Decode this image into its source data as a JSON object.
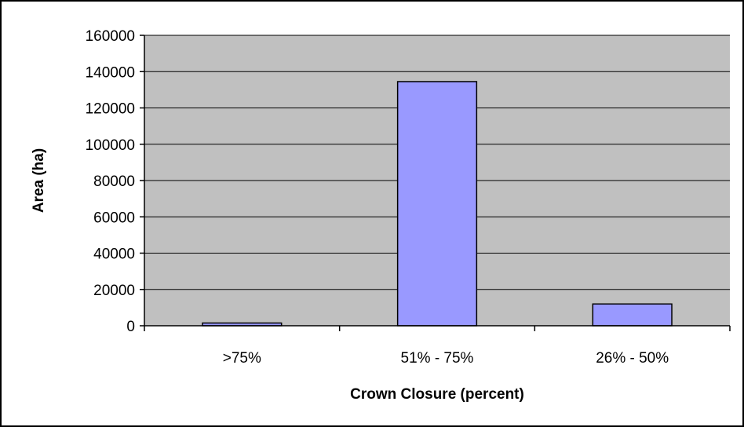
{
  "chart_data": {
    "type": "bar",
    "title": "",
    "xlabel": "Crown Closure (percent)",
    "ylabel": "Area (ha)",
    "categories": [
      ">75%",
      "51% - 75%",
      "26% - 50%"
    ],
    "series": [
      {
        "values": [
          1500,
          134500,
          12000
        ]
      }
    ],
    "ylim": [
      0,
      160000
    ],
    "yticks": [
      "0",
      "20000",
      "40000",
      "60000",
      "80000",
      "100000",
      "120000",
      "140000",
      "160000"
    ],
    "ytick_values": [
      0,
      20000,
      40000,
      60000,
      80000,
      100000,
      120000,
      140000,
      160000
    ],
    "grid": true,
    "legend": "none",
    "colors": {
      "plot_background": "#c0c0c0",
      "bar_fill": "#9999ff",
      "bar_stroke": "#000000",
      "gridline": "#000000"
    }
  }
}
